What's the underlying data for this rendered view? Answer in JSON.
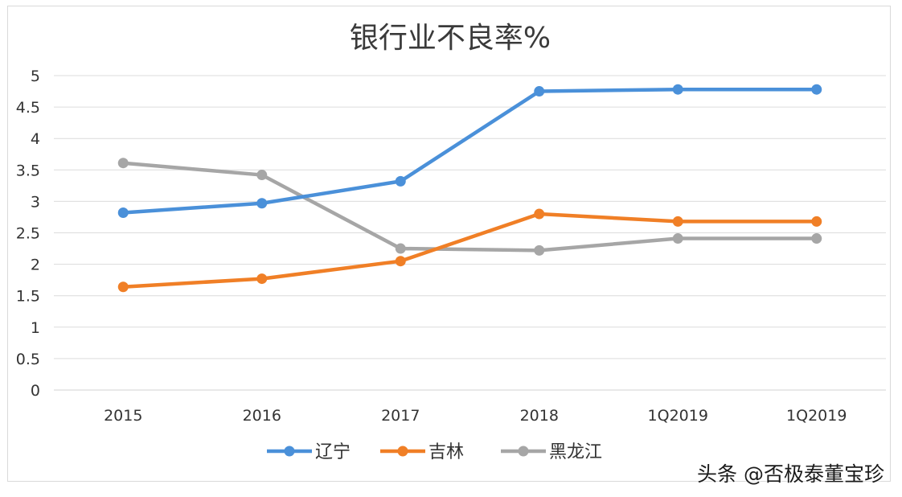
{
  "chart_data": {
    "type": "line",
    "title": "银行业不良率%",
    "categories": [
      "2015",
      "2016",
      "2017",
      "2018",
      "1Q2019",
      "1Q2019"
    ],
    "ylim": [
      0,
      5
    ],
    "yticks": [
      "0",
      "0.5",
      "1",
      "1.5",
      "2",
      "2.5",
      "3",
      "3.5",
      "4",
      "4.5",
      "5"
    ],
    "grid": true,
    "legend_position": "bottom",
    "series": [
      {
        "name": "辽宁",
        "color": "#4a90d9",
        "values": [
          2.82,
          2.97,
          3.32,
          4.75,
          4.78,
          4.78
        ]
      },
      {
        "name": "吉林",
        "color": "#f07f26",
        "values": [
          1.64,
          1.77,
          2.05,
          2.8,
          2.68,
          2.68
        ]
      },
      {
        "name": "黑龙江",
        "color": "#a6a6a6",
        "values": [
          3.61,
          3.42,
          2.25,
          2.22,
          2.41,
          2.41
        ]
      }
    ]
  },
  "watermark": "头条 @否极泰董宝珍"
}
